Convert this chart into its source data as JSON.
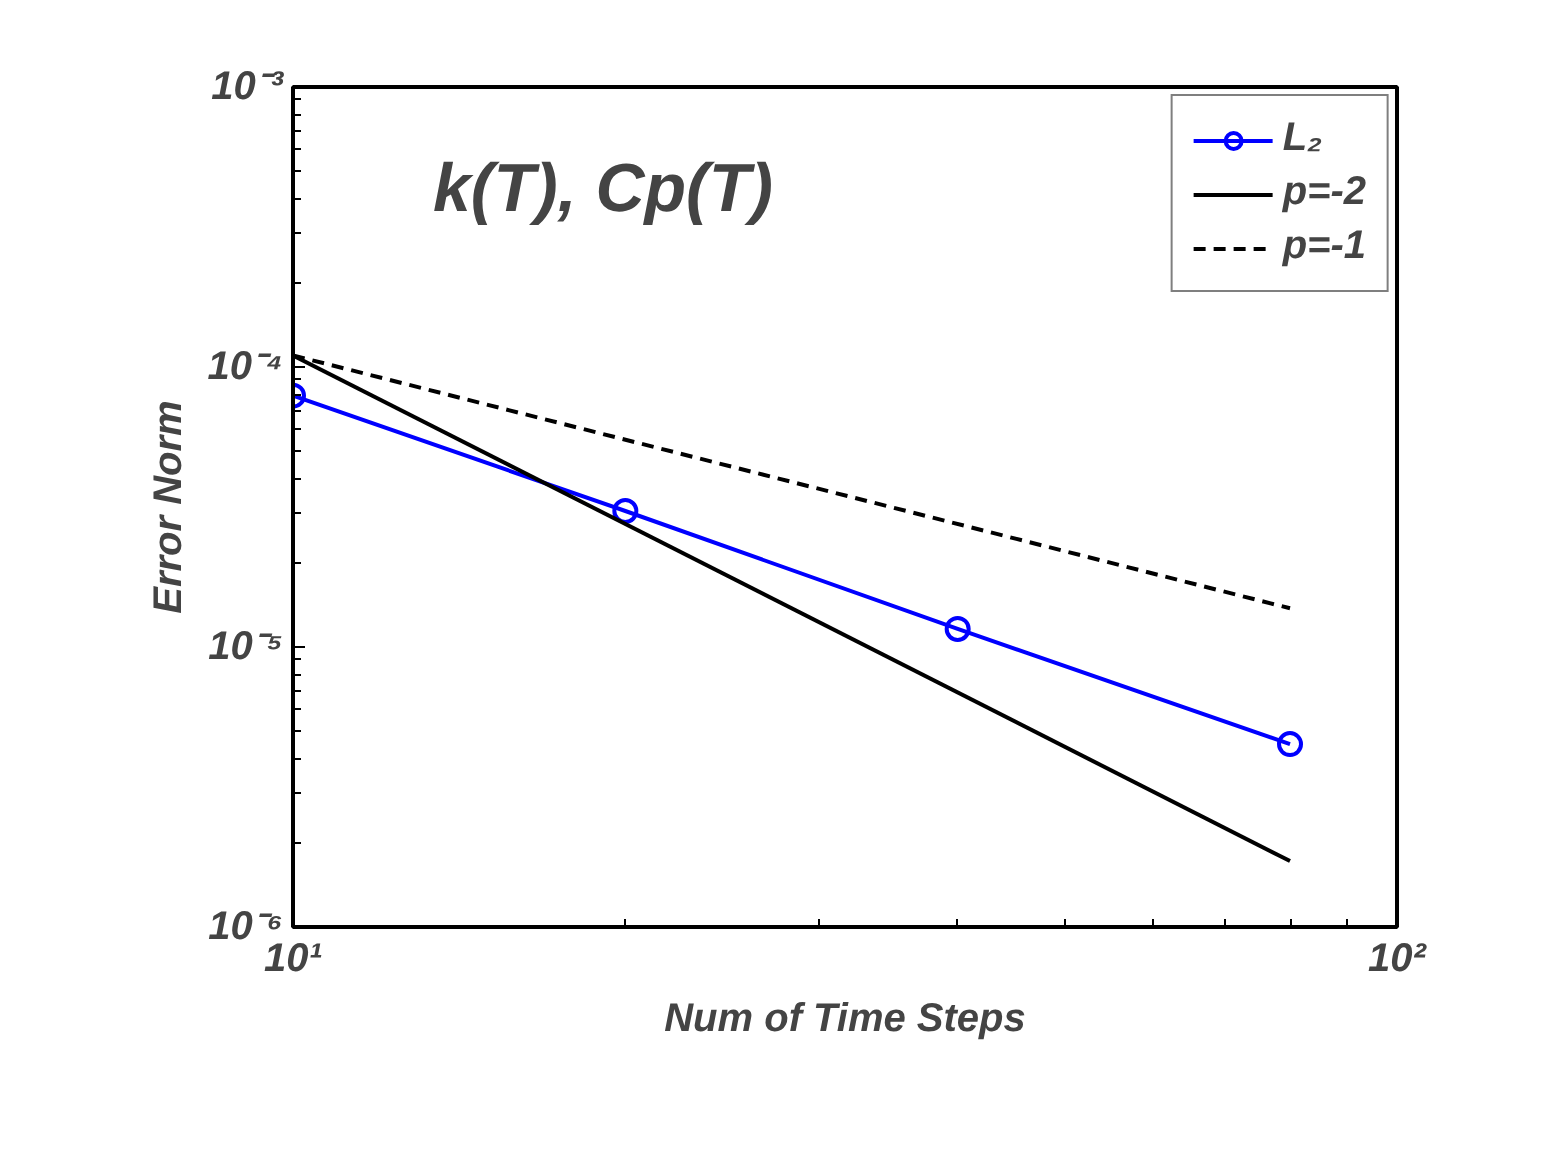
{
  "chart_data": {
    "type": "line",
    "title": "k(T), Cp(T)",
    "xlabel": "Num of Time Steps",
    "ylabel": "Error Norm",
    "log": "xy",
    "xlim": [
      10,
      100
    ],
    "ylim": [
      1e-06,
      0.001
    ],
    "xticks": [
      {
        "value": 10,
        "label": "10¹"
      },
      {
        "value": 100,
        "label": "10²"
      }
    ],
    "yticks": [
      {
        "value": 1e-06,
        "label": "10⁻⁶"
      },
      {
        "value": 1e-05,
        "label": "10⁻⁵"
      },
      {
        "value": 0.0001,
        "label": "10⁻⁴"
      },
      {
        "value": 0.001,
        "label": "10⁻³"
      }
    ],
    "grid": false,
    "legend": "top right",
    "series": [
      {
        "name": "L₂",
        "color": "#0000ff",
        "x": [
          10,
          20,
          40,
          80
        ],
        "values": [
          7.9e-05,
          3.06e-05,
          1.16e-05,
          4.5e-06
        ],
        "marker": "circle",
        "line_style": "solid"
      },
      {
        "name": "p=-2",
        "color": "#000000",
        "x": [
          10,
          80
        ],
        "values": [
          0.00011,
          1.72e-06
        ],
        "marker": "none",
        "line_style": "solid"
      },
      {
        "name": "p=-1",
        "color": "#000000",
        "x": [
          10,
          80
        ],
        "values": [
          0.00011,
          1.375e-05
        ],
        "marker": "none",
        "line_style": "dashed"
      }
    ]
  }
}
